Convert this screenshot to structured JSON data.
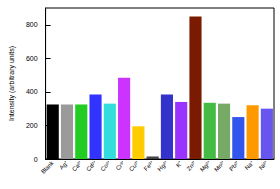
{
  "chart_data": {
    "type": "bar",
    "y_label": "Intensity (arbitrary units)",
    "categories": [
      "Blank",
      "Ag⁺",
      "Ca²⁺",
      "Cd²⁺",
      "Co²⁺",
      "Cr³⁺",
      "Cu²⁺",
      "Fe³⁺",
      "Hg²⁺",
      "K⁺",
      "Zn²⁺",
      "Mg²⁺",
      "Mn²⁺",
      "Pb²⁺",
      "Na⁺",
      "Ni²⁺"
    ],
    "values": [
      325,
      325,
      325,
      385,
      330,
      485,
      195,
      15,
      385,
      340,
      850,
      335,
      330,
      250,
      320,
      300
    ],
    "colors": [
      "#000000",
      "#9a9a9a",
      "#22cc22",
      "#3333ff",
      "#33dddd",
      "#cc33ff",
      "#ffcc00",
      "#444444",
      "#3333cc",
      "#9933ff",
      "#7a1a00",
      "#44bb44",
      "#77aa66",
      "#3355ee",
      "#ff9900",
      "#6655ee"
    ],
    "ylim": [
      0,
      900
    ],
    "yticks": [
      0,
      200,
      400,
      600,
      800
    ],
    "grid": false
  }
}
